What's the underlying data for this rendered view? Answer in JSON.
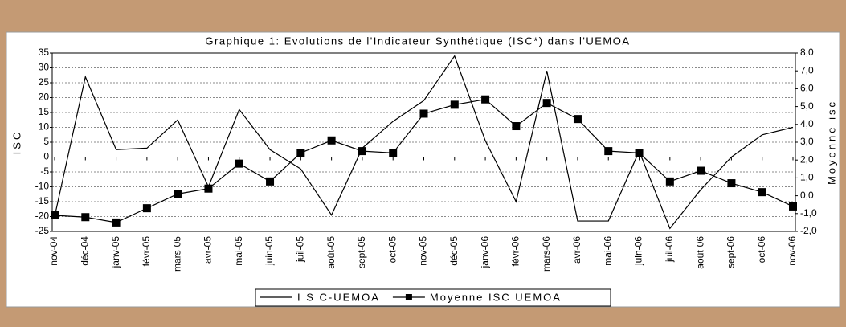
{
  "chart_data": {
    "type": "line",
    "title": "Graphique 1: Evolutions de l'Indicateur Synthétique (ISC*) dans l'UEMOA",
    "y_label": "ISC",
    "y2_label": "Moyenne isc",
    "categories": [
      "nov-04",
      "déc-04",
      "janv-05",
      "févr-05",
      "mars-05",
      "avr-05",
      "mai-05",
      "juin-05",
      "juil-05",
      "août-05",
      "sept-05",
      "oct-05",
      "nov-05",
      "déc-05",
      "janv-06",
      "févr-06",
      "mars-06",
      "avr-06",
      "mai-06",
      "juin-06",
      "juil-06",
      "août-06",
      "sept-06",
      "oct-06",
      "nov-06"
    ],
    "series": [
      {
        "name": "I S C-UEMOA",
        "color": "#000000",
        "marker": "none",
        "values": [
          -20,
          27,
          2.5,
          3,
          12.5,
          -10,
          16,
          2.5,
          -4,
          -19.5,
          3,
          12,
          19,
          34,
          5.5,
          -15,
          29,
          -21.5,
          -21.5,
          2,
          -24,
          -11,
          0,
          7.5,
          10
        ]
      },
      {
        "name": "Moyenne ISC UEMOA",
        "color": "#000000",
        "marker": "square",
        "axis": "y2",
        "values": [
          -1.1,
          -1.2,
          -1.5,
          -0.7,
          0.1,
          0.4,
          1.8,
          0.8,
          2.4,
          3.1,
          2.5,
          2.4,
          4.6,
          5.1,
          5.4,
          3.9,
          5.2,
          4.3,
          2.5,
          2.4,
          0.8,
          1.4,
          0.7,
          0.2,
          -0.6
        ]
      }
    ],
    "ylim": [
      -25,
      35
    ],
    "yticks": [
      35,
      30,
      25,
      20,
      15,
      10,
      5,
      0,
      -5,
      -10,
      -15,
      -20,
      -25
    ],
    "y2lim": [
      -2,
      8
    ],
    "y2ticks": [
      {
        "value": 8,
        "label": "8,0"
      },
      {
        "value": 7,
        "label": "7,0"
      },
      {
        "value": 6,
        "label": "6,0"
      },
      {
        "value": 5,
        "label": "5,0"
      },
      {
        "value": 4,
        "label": "4,0"
      },
      {
        "value": 3,
        "label": "3,0"
      },
      {
        "value": 2,
        "label": "2,0"
      },
      {
        "value": 1,
        "label": "1,0"
      },
      {
        "value": 0,
        "label": "0,0"
      },
      {
        "value": -1,
        "label": "-1,0"
      },
      {
        "value": -2,
        "label": "-2,0"
      }
    ],
    "grid": true,
    "legend": "bottom"
  }
}
